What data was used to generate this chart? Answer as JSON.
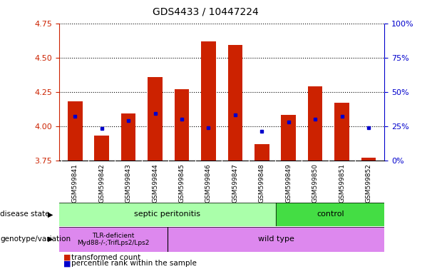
{
  "title": "GDS4433 / 10447224",
  "samples": [
    "GSM599841",
    "GSM599842",
    "GSM599843",
    "GSM599844",
    "GSM599845",
    "GSM599846",
    "GSM599847",
    "GSM599848",
    "GSM599849",
    "GSM599850",
    "GSM599851",
    "GSM599852"
  ],
  "bar_top": [
    4.18,
    3.93,
    4.09,
    4.36,
    4.27,
    4.62,
    4.59,
    3.87,
    4.08,
    4.29,
    4.17,
    3.77
  ],
  "bar_bottom": 3.75,
  "blue_dot_y": [
    4.07,
    3.98,
    4.04,
    4.09,
    4.05,
    3.99,
    4.08,
    3.96,
    4.03,
    4.05,
    4.07,
    3.99
  ],
  "ylim": [
    3.75,
    4.75
  ],
  "right_ylim": [
    0,
    100
  ],
  "right_yticks": [
    0,
    25,
    50,
    75,
    100
  ],
  "right_yticklabels": [
    "0%",
    "25%",
    "50%",
    "75%",
    "100%"
  ],
  "left_yticks": [
    3.75,
    4.0,
    4.25,
    4.5,
    4.75
  ],
  "hlines": [
    4.0,
    4.25,
    4.5,
    4.75
  ],
  "bar_color": "#cc2200",
  "dot_color": "#0000cc",
  "bg_color": "#ffffff",
  "disease_state_labels": [
    "septic peritonitis",
    "control"
  ],
  "disease_state_color_sep": "#aaffaa",
  "disease_state_color_ctrl": "#44dd44",
  "genotype_labels": [
    "TLR-deficient\nMyd88-/-;TrifLps2/Lps2",
    "wild type"
  ],
  "genotype_color": "#dd88ee",
  "legend_items": [
    "transformed count",
    "percentile rank within the sample"
  ],
  "left_label_color": "#cc2200",
  "right_label_color": "#0000cc",
  "tick_area_bg": "#c8c8c8",
  "axis_label_disease": "disease state",
  "axis_label_genotype": "genotype/variation"
}
